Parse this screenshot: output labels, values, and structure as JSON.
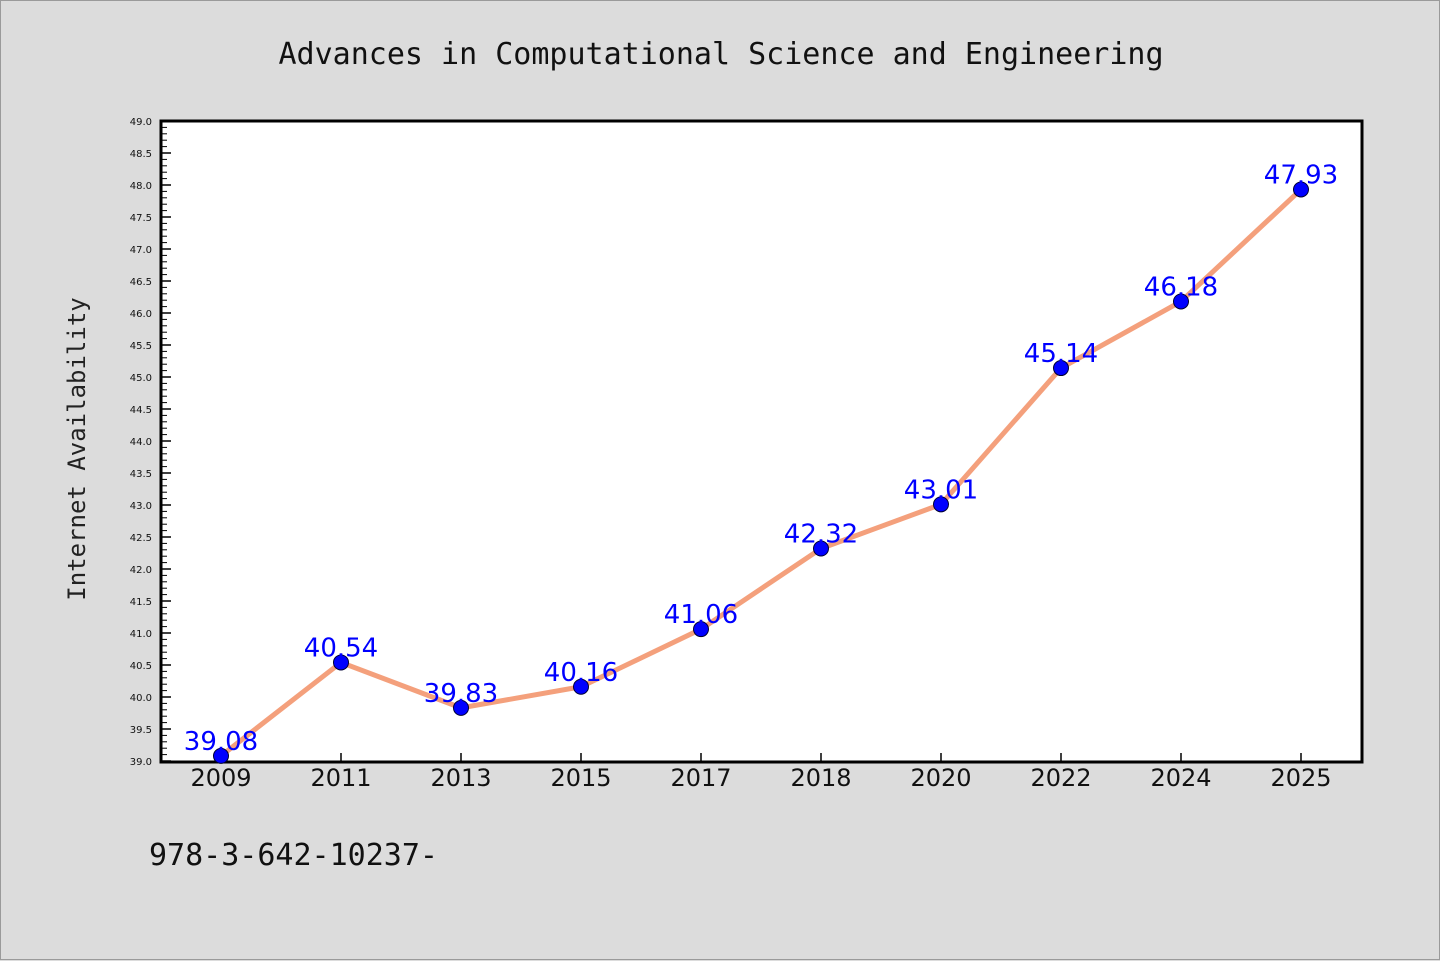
{
  "chart_data": {
    "type": "line",
    "title": "Advances in Computational Science and Engineering",
    "xlabel": "",
    "ylabel": "Internet Availability",
    "categories": [
      "2009",
      "2011",
      "2013",
      "2015",
      "2017",
      "2018",
      "2020",
      "2022",
      "2024",
      "2025"
    ],
    "series": [
      {
        "values": [
          39.08,
          40.54,
          39.83,
          40.16,
          41.06,
          42.32,
          43.01,
          45.14,
          46.18,
          47.93
        ],
        "labels": [
          "39.08",
          "40.54",
          "39.83",
          "40.16",
          "41.06",
          "42.32",
          "43.01",
          "45.14",
          "46.18",
          "47.93"
        ],
        "line_color": "#f4a07c",
        "marker_color": "#0000ff"
      }
    ],
    "ylim": [
      39.0,
      49.0
    ],
    "yticks": [
      "39.0",
      "39.5",
      "40.0",
      "40.5",
      "41.0",
      "41.5",
      "42.0",
      "42.5",
      "43.0",
      "43.5",
      "44.0",
      "44.5",
      "45.0",
      "45.5",
      "46.0",
      "46.5",
      "47.0",
      "47.5",
      "48.0",
      "48.5",
      "49.0"
    ],
    "grid": false,
    "legend": "none"
  },
  "footer": {
    "note": "978-3-642-10237-"
  }
}
